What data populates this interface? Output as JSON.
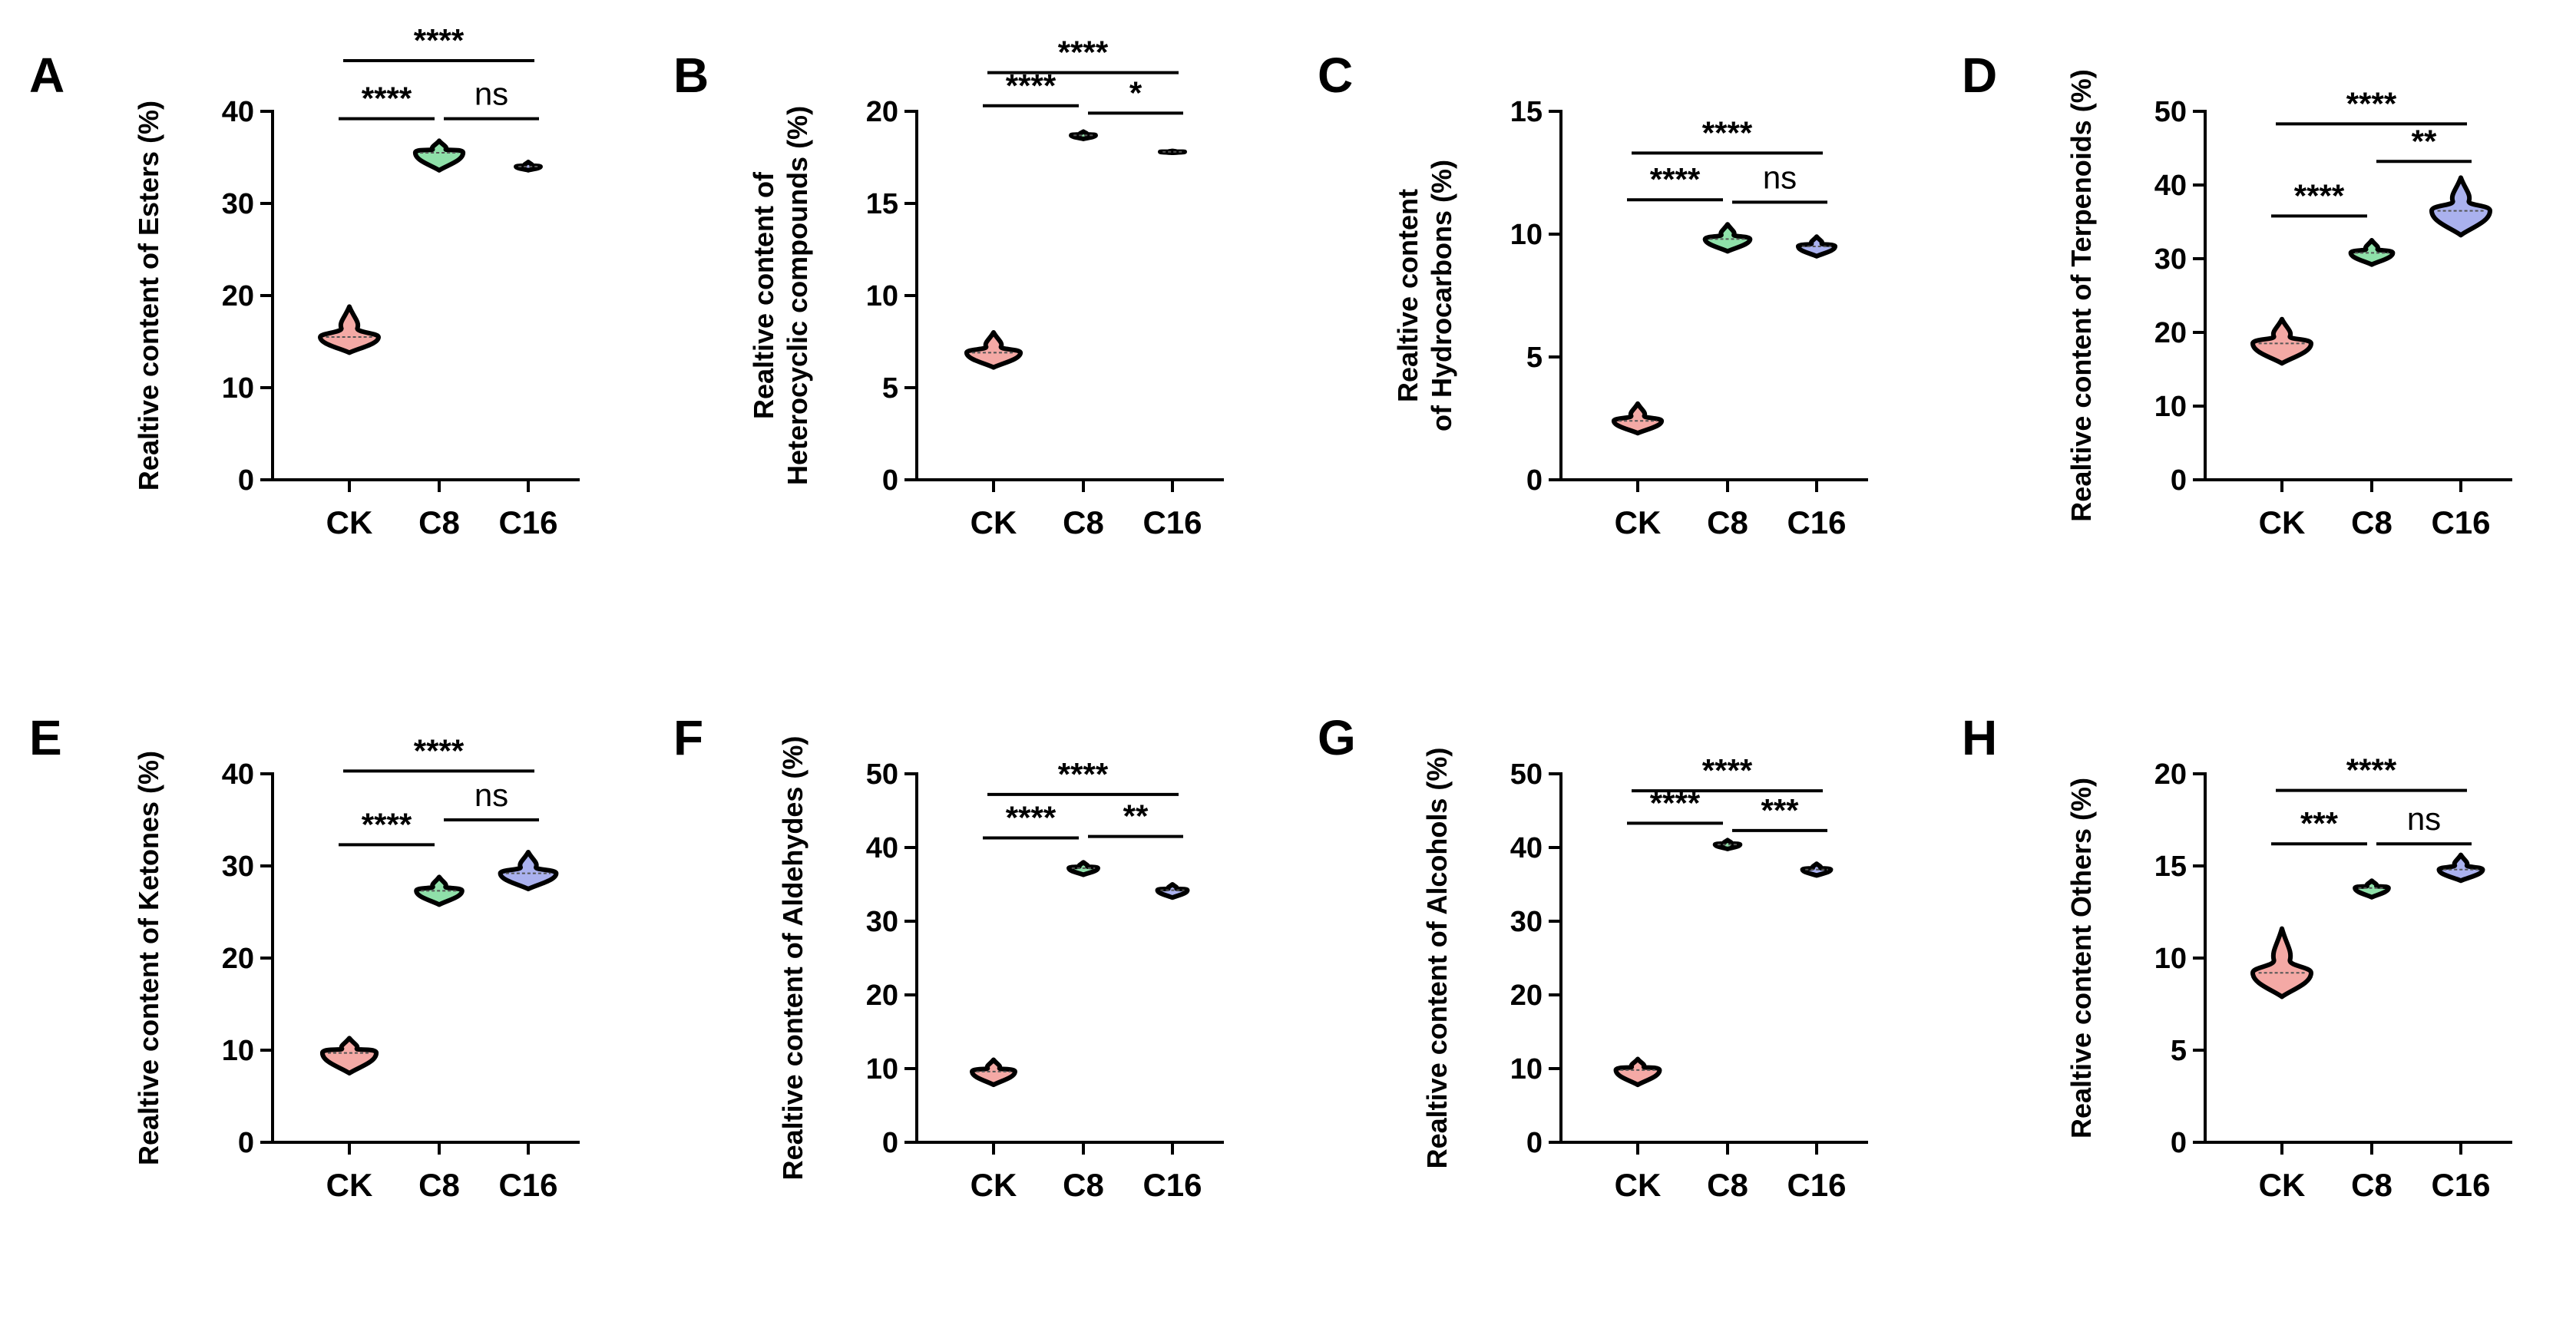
{
  "colors": {
    "CK": "#f4a9a5",
    "C8": "#8fe0a9",
    "C16": "#aab1ee",
    "ink": "#000000"
  },
  "chart_data": [
    {
      "panel": "A",
      "type": "violin",
      "ylabel": [
        "Realtive content of Esters (%)"
      ],
      "categories": [
        "CK",
        "C8",
        "C16"
      ],
      "ylim": [
        0,
        40
      ],
      "yticks": [
        0,
        10,
        20,
        30,
        40
      ],
      "violins": [
        {
          "group": "CK",
          "median": 15.5,
          "min": 13.8,
          "max": 18.8
        },
        {
          "group": "C8",
          "median": 35.5,
          "min": 33.6,
          "max": 36.8
        },
        {
          "group": "C16",
          "median": 34.0,
          "min": 33.6,
          "max": 34.5
        }
      ],
      "significance": [
        {
          "from": 0,
          "to": 1,
          "label": "****",
          "y": 39.2
        },
        {
          "from": 1,
          "to": 2,
          "label": "ns",
          "y": 39.2
        },
        {
          "from": 0,
          "to": 2,
          "label": "****",
          "y": 45.5
        }
      ]
    },
    {
      "panel": "B",
      "type": "violin",
      "ylabel": [
        "Realtive content of",
        "Heterocyclic compounds (%)"
      ],
      "categories": [
        "CK",
        "C8",
        "C16"
      ],
      "ylim": [
        0,
        20
      ],
      "yticks": [
        0,
        5,
        10,
        15,
        20
      ],
      "violins": [
        {
          "group": "CK",
          "median": 6.9,
          "min": 6.1,
          "max": 8.0
        },
        {
          "group": "C8",
          "median": 18.7,
          "min": 18.5,
          "max": 18.9
        },
        {
          "group": "C16",
          "median": 17.8,
          "min": 17.75,
          "max": 17.85
        }
      ],
      "significance": [
        {
          "from": 0,
          "to": 1,
          "label": "****",
          "y": 20.3
        },
        {
          "from": 1,
          "to": 2,
          "label": "*",
          "y": 19.9
        },
        {
          "from": 0,
          "to": 2,
          "label": "****",
          "y": 22.1
        }
      ]
    },
    {
      "panel": "C",
      "type": "violin",
      "ylabel": [
        "Realtive content",
        "of Hydrocarbons (%)"
      ],
      "categories": [
        "CK",
        "C8",
        "C16"
      ],
      "ylim": [
        0,
        15
      ],
      "yticks": [
        0,
        5,
        10,
        15
      ],
      "violins": [
        {
          "group": "CK",
          "median": 2.4,
          "min": 1.9,
          "max": 3.1
        },
        {
          "group": "C8",
          "median": 9.8,
          "min": 9.3,
          "max": 10.4
        },
        {
          "group": "C16",
          "median": 9.5,
          "min": 9.1,
          "max": 9.9
        }
      ],
      "significance": [
        {
          "from": 0,
          "to": 1,
          "label": "****",
          "y": 11.4
        },
        {
          "from": 1,
          "to": 2,
          "label": "ns",
          "y": 11.3
        },
        {
          "from": 0,
          "to": 2,
          "label": "****",
          "y": 13.3
        }
      ]
    },
    {
      "panel": "D",
      "type": "violin",
      "ylabel": [
        "Realtive content of Terpenoids (%)"
      ],
      "categories": [
        "CK",
        "C8",
        "C16"
      ],
      "ylim": [
        0,
        50
      ],
      "yticks": [
        0,
        10,
        20,
        30,
        40,
        50
      ],
      "violins": [
        {
          "group": "CK",
          "median": 18.5,
          "min": 15.8,
          "max": 21.8
        },
        {
          "group": "C8",
          "median": 30.8,
          "min": 29.2,
          "max": 32.5
        },
        {
          "group": "C16",
          "median": 36.5,
          "min": 33.2,
          "max": 41.0
        }
      ],
      "significance": [
        {
          "from": 0,
          "to": 1,
          "label": "****",
          "y": 35.8
        },
        {
          "from": 1,
          "to": 2,
          "label": "**",
          "y": 43.2
        },
        {
          "from": 0,
          "to": 2,
          "label": "****",
          "y": 48.3
        }
      ]
    },
    {
      "panel": "E",
      "type": "violin",
      "ylabel": [
        "Realtive content of Ketones (%)"
      ],
      "categories": [
        "CK",
        "C8",
        "C16"
      ],
      "ylim": [
        0,
        40
      ],
      "yticks": [
        0,
        10,
        20,
        30,
        40
      ],
      "violins": [
        {
          "group": "CK",
          "median": 9.7,
          "min": 7.5,
          "max": 11.3
        },
        {
          "group": "C8",
          "median": 27.3,
          "min": 25.8,
          "max": 28.8
        },
        {
          "group": "C16",
          "median": 29.2,
          "min": 27.5,
          "max": 31.5
        }
      ],
      "significance": [
        {
          "from": 0,
          "to": 1,
          "label": "****",
          "y": 32.3
        },
        {
          "from": 1,
          "to": 2,
          "label": "ns",
          "y": 35.0
        },
        {
          "from": 0,
          "to": 2,
          "label": "****",
          "y": 40.3
        }
      ]
    },
    {
      "panel": "F",
      "type": "violin",
      "ylabel": [
        "Realtive content of Aldehydes (%)"
      ],
      "categories": [
        "CK",
        "C8",
        "C16"
      ],
      "ylim": [
        0,
        50
      ],
      "yticks": [
        0,
        10,
        20,
        30,
        40,
        50
      ],
      "violins": [
        {
          "group": "CK",
          "median": 9.6,
          "min": 7.8,
          "max": 11.2
        },
        {
          "group": "C8",
          "median": 37.2,
          "min": 36.3,
          "max": 38.0
        },
        {
          "group": "C16",
          "median": 34.2,
          "min": 33.2,
          "max": 35.0
        }
      ],
      "significance": [
        {
          "from": 0,
          "to": 1,
          "label": "****",
          "y": 41.3
        },
        {
          "from": 1,
          "to": 2,
          "label": "**",
          "y": 41.5
        },
        {
          "from": 0,
          "to": 2,
          "label": "****",
          "y": 47.2
        }
      ]
    },
    {
      "panel": "G",
      "type": "violin",
      "ylabel": [
        "Realtive content of Alcohols (%)"
      ],
      "categories": [
        "CK",
        "C8",
        "C16"
      ],
      "ylim": [
        0,
        50
      ],
      "yticks": [
        0,
        10,
        20,
        30,
        40,
        50
      ],
      "violins": [
        {
          "group": "CK",
          "median": 9.8,
          "min": 7.8,
          "max": 11.3
        },
        {
          "group": "C8",
          "median": 40.4,
          "min": 39.8,
          "max": 41.0
        },
        {
          "group": "C16",
          "median": 37.0,
          "min": 36.2,
          "max": 37.8
        }
      ],
      "significance": [
        {
          "from": 0,
          "to": 1,
          "label": "****",
          "y": 43.3
        },
        {
          "from": 1,
          "to": 2,
          "label": "***",
          "y": 42.3
        },
        {
          "from": 0,
          "to": 2,
          "label": "****",
          "y": 47.7
        }
      ]
    },
    {
      "panel": "H",
      "type": "violin",
      "ylabel": [
        "Realtive content Others (%)"
      ],
      "categories": [
        "CK",
        "C8",
        "C16"
      ],
      "ylim": [
        0,
        20
      ],
      "yticks": [
        0,
        5,
        10,
        15,
        20
      ],
      "violins": [
        {
          "group": "CK",
          "median": 9.2,
          "min": 7.9,
          "max": 11.6
        },
        {
          "group": "C8",
          "median": 13.8,
          "min": 13.3,
          "max": 14.2
        },
        {
          "group": "C16",
          "median": 14.8,
          "min": 14.2,
          "max": 15.6
        }
      ],
      "significance": [
        {
          "from": 0,
          "to": 1,
          "label": "***",
          "y": 16.2
        },
        {
          "from": 1,
          "to": 2,
          "label": "ns",
          "y": 16.2
        },
        {
          "from": 0,
          "to": 2,
          "label": "****",
          "y": 19.1
        }
      ]
    }
  ]
}
